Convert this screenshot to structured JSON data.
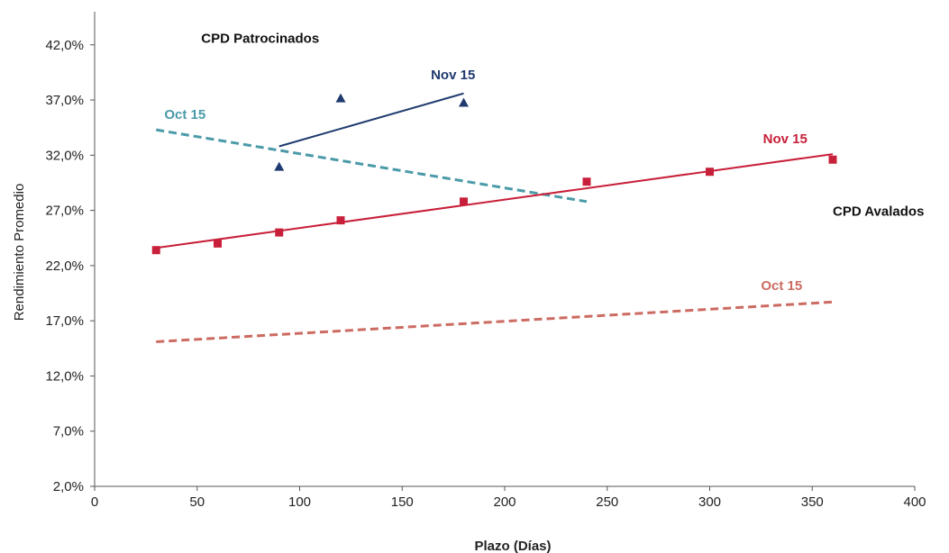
{
  "chart_data": {
    "type": "scatter",
    "xlabel": "Plazo (Días)",
    "ylabel": "Rendimiento Promedio",
    "xlim": [
      0,
      400
    ],
    "ylim": [
      2,
      45
    ],
    "x_ticks": [
      0,
      50,
      100,
      150,
      200,
      250,
      300,
      350,
      400
    ],
    "y_ticks": [
      2,
      7,
      12,
      17,
      22,
      27,
      32,
      37,
      42
    ],
    "y_tick_labels": [
      "2,0%",
      "7,0%",
      "12,0%",
      "17,0%",
      "22,0%",
      "27,0%",
      "32,0%",
      "37,0%",
      "42,0%"
    ],
    "grid": false,
    "series": [
      {
        "marker": "triangle",
        "color": "#1f3a6e",
        "x": [
          90,
          120,
          180
        ],
        "y": [
          31.0,
          37.2,
          36.8
        ]
      },
      {
        "marker": "square",
        "color": "#c8203a",
        "x": [
          30,
          60,
          90,
          120,
          180,
          240,
          300,
          360
        ],
        "y": [
          23.4,
          24.0,
          25.0,
          26.1,
          27.8,
          29.6,
          30.5,
          31.6
        ]
      }
    ],
    "trendlines": [
      {
        "label": "Nov 15",
        "color": "#1f3a6e",
        "dash": false,
        "x": [
          90,
          180
        ],
        "y": [
          32.8,
          37.6
        ]
      },
      {
        "label": "Oct 15",
        "color": "#4a9aa8",
        "dash": true,
        "x": [
          30,
          240
        ],
        "y": [
          34.3,
          27.8
        ]
      },
      {
        "label": "Nov 15",
        "color": "#c8203a",
        "dash": false,
        "x": [
          30,
          360
        ],
        "y": [
          23.6,
          32.1
        ]
      },
      {
        "label": "Oct 15",
        "color": "#cc6b62",
        "dash": true,
        "x": [
          30,
          360
        ],
        "y": [
          15.1,
          18.7
        ]
      }
    ],
    "annotations": [
      {
        "text": "CPD Patrocinados",
        "color": "#111111",
        "x": 52,
        "y": 42.2
      },
      {
        "text": "CPD Avalados",
        "color": "#111111",
        "x": 360,
        "y": 26.5
      },
      {
        "text": "Nov 15",
        "color": "#1f3a6e",
        "x": 164,
        "y": 38.9
      },
      {
        "text": "Oct 15",
        "color": "#4a9aa8",
        "x": 34,
        "y": 35.3
      },
      {
        "text": "Nov 15",
        "color": "#c8203a",
        "x": 326,
        "y": 33.1
      },
      {
        "text": "Oct 15",
        "color": "#cc6b62",
        "x": 325,
        "y": 19.8
      }
    ]
  }
}
